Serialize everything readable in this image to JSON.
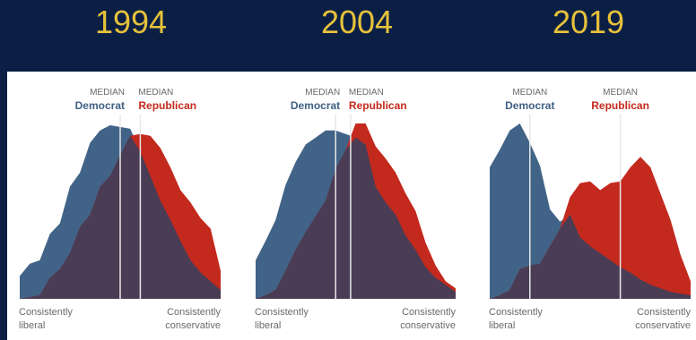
{
  "colors": {
    "background": "#0b1f45",
    "year": "#e6c13a",
    "democrat": "#416387",
    "republican": "#c3291d",
    "overlap": "#4a3c55",
    "median_line": "#e8e8e8"
  },
  "chart_data": [
    {
      "type": "area",
      "title": "1994",
      "x": [
        0,
        1,
        2,
        3,
        4,
        5,
        6,
        7,
        8,
        9,
        10,
        11,
        12,
        13,
        14,
        15,
        16,
        17,
        18,
        19,
        20
      ],
      "xlim": [
        0,
        20
      ],
      "ylim": [
        0,
        1
      ],
      "x_min_label": "Consistently liberal",
      "x_max_label": "Consistently conservative",
      "series": [
        {
          "name": "Democrat",
          "values": [
            0.13,
            0.2,
            0.22,
            0.37,
            0.43,
            0.64,
            0.72,
            0.89,
            0.96,
            0.99,
            0.98,
            0.97,
            0.84,
            0.7,
            0.56,
            0.45,
            0.33,
            0.22,
            0.15,
            0.1,
            0.05
          ]
        },
        {
          "name": "Republican",
          "values": [
            0.0,
            0.01,
            0.02,
            0.12,
            0.17,
            0.26,
            0.41,
            0.48,
            0.64,
            0.7,
            0.82,
            0.93,
            0.94,
            0.93,
            0.86,
            0.75,
            0.62,
            0.55,
            0.46,
            0.4,
            0.16
          ]
        }
      ],
      "medians": [
        {
          "label_small": "MEDIAN",
          "label": "Democrat",
          "x": 10.0
        },
        {
          "label_small": "MEDIAN",
          "label": "Republican",
          "x": 12.0
        }
      ]
    },
    {
      "type": "area",
      "title": "2004",
      "x": [
        0,
        1,
        2,
        3,
        4,
        5,
        6,
        7,
        8,
        9,
        10,
        11,
        12,
        13,
        14,
        15,
        16,
        17,
        18,
        19,
        20
      ],
      "xlim": [
        0,
        20
      ],
      "ylim": [
        0,
        1
      ],
      "x_min_label": "Consistently liberal",
      "x_max_label": "Consistently conservative",
      "series": [
        {
          "name": "Democrat",
          "values": [
            0.22,
            0.33,
            0.45,
            0.65,
            0.78,
            0.88,
            0.92,
            0.96,
            0.96,
            0.94,
            0.92,
            0.88,
            0.64,
            0.55,
            0.48,
            0.36,
            0.28,
            0.18,
            0.12,
            0.08,
            0.04
          ]
        },
        {
          "name": "Republican",
          "values": [
            0.0,
            0.02,
            0.05,
            0.16,
            0.28,
            0.38,
            0.47,
            0.56,
            0.74,
            0.85,
            1.0,
            1.0,
            0.87,
            0.8,
            0.72,
            0.6,
            0.5,
            0.32,
            0.19,
            0.1,
            0.06
          ]
        }
      ],
      "medians": [
        {
          "label_small": "MEDIAN",
          "label": "Democrat",
          "x": 8.0
        },
        {
          "label_small": "MEDIAN",
          "label": "Republican",
          "x": 9.5
        }
      ]
    },
    {
      "type": "area",
      "title": "2019",
      "x": [
        0,
        1,
        2,
        3,
        4,
        5,
        6,
        7,
        8,
        9,
        10,
        11,
        12,
        13,
        14,
        15,
        16,
        17,
        18,
        19,
        20
      ],
      "xlim": [
        0,
        20
      ],
      "ylim": [
        0,
        1
      ],
      "x_min_label": "Consistently liberal",
      "x_max_label": "Consistently conservative",
      "series": [
        {
          "name": "Democrat",
          "values": [
            0.75,
            0.85,
            0.96,
            1.0,
            0.89,
            0.76,
            0.51,
            0.44,
            0.48,
            0.35,
            0.3,
            0.26,
            0.22,
            0.18,
            0.15,
            0.11,
            0.08,
            0.06,
            0.04,
            0.03,
            0.02
          ]
        },
        {
          "name": "Republican",
          "values": [
            0.0,
            0.02,
            0.05,
            0.17,
            0.19,
            0.2,
            0.3,
            0.4,
            0.43,
            0.41,
            0.36,
            0.26,
            0.17,
            0.13,
            0.1,
            0.08,
            0.06,
            0.04,
            0.03,
            0.02,
            0.01
          ]
        },
        {
          "name": "Republican",
          "values": [
            0.0,
            0.0,
            0.0,
            0.0,
            0.0,
            0.0,
            0.0,
            0.4,
            0.58,
            0.66,
            0.67,
            0.62,
            0.66,
            0.67,
            0.75,
            0.81,
            0.75,
            0.6,
            0.45,
            0.25,
            0.1
          ]
        }
      ],
      "medians": [
        {
          "label_small": "MEDIAN",
          "label": "Democrat",
          "x": 4.0
        },
        {
          "label_small": "MEDIAN",
          "label": "Republican",
          "x": 13.0
        }
      ]
    }
  ]
}
